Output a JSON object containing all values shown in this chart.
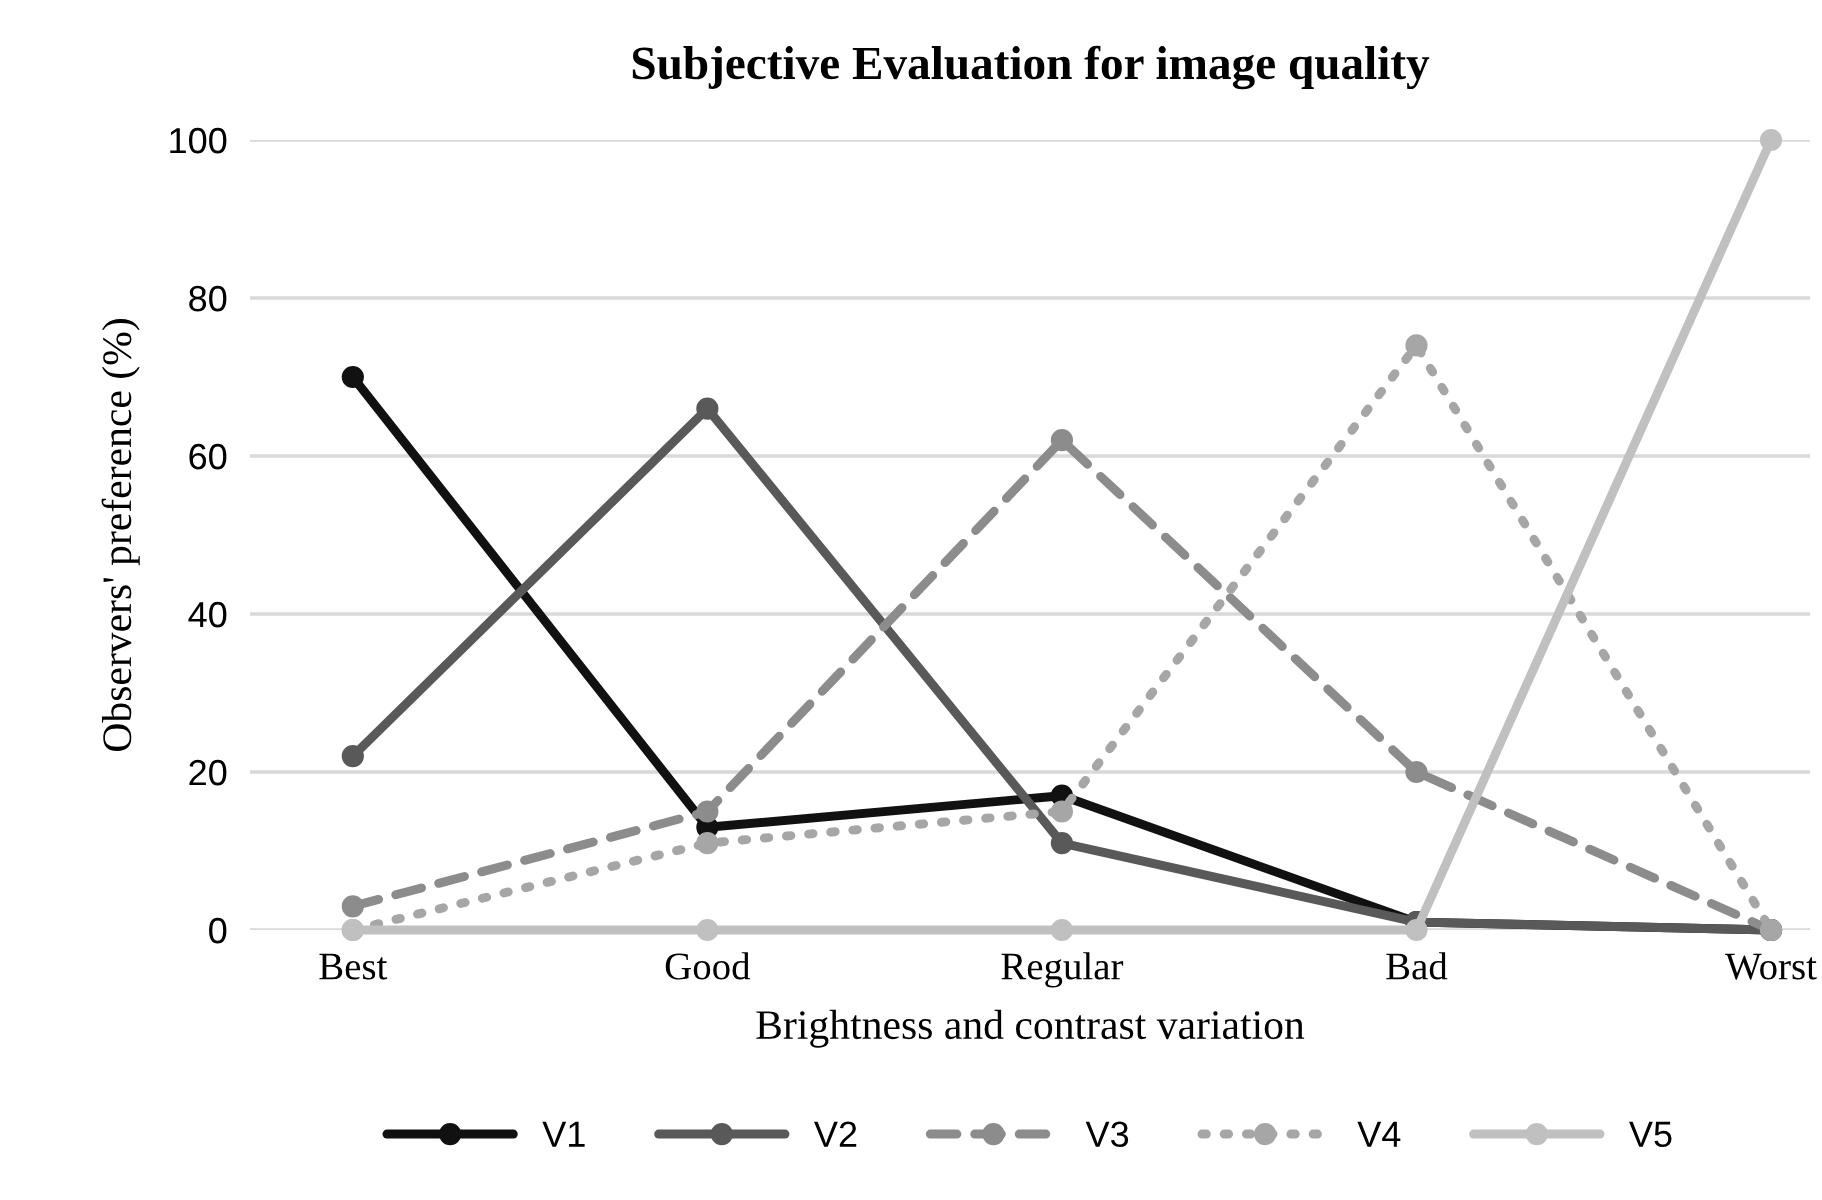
{
  "chart_data": {
    "type": "line",
    "title": "Subjective Evaluation for image quality",
    "xlabel": "Brightness and contrast variation",
    "ylabel": "Observers' preference (%)",
    "categories": [
      "Best",
      "Good",
      "Regular",
      "Bad",
      "Worst"
    ],
    "series": [
      {
        "name": "V1",
        "color": "#111111",
        "line_style": "solid",
        "values": [
          70,
          13,
          17,
          1,
          0
        ]
      },
      {
        "name": "V2",
        "color": "#595959",
        "line_style": "solid",
        "values": [
          22,
          66,
          11,
          1,
          0
        ]
      },
      {
        "name": "V3",
        "color": "#8c8c8c",
        "line_style": "dashed",
        "values": [
          3,
          15,
          62,
          20,
          0
        ]
      },
      {
        "name": "V4",
        "color": "#a6a6a6",
        "line_style": "dotted",
        "values": [
          0,
          11,
          15,
          74,
          0
        ]
      },
      {
        "name": "V5",
        "color": "#c0c0c0",
        "line_style": "solid",
        "values": [
          0,
          0,
          0,
          0,
          100
        ]
      }
    ],
    "ylim": [
      0,
      100
    ],
    "yticks": [
      0,
      20,
      40,
      60,
      80,
      100
    ],
    "grid": "y",
    "legend": "bottom",
    "marker": "circle"
  }
}
